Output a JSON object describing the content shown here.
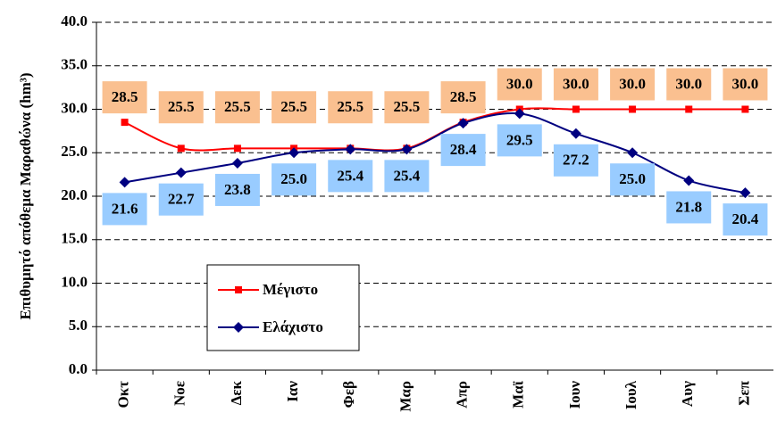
{
  "chart_data": {
    "type": "line",
    "y_label": "Επιθυμητό απόθεμα Μαραθώνα (hm³)",
    "categories": [
      "Οκτ",
      "Νοε",
      "Δεκ",
      "Ιαν",
      "Φεβ",
      "Μαρ",
      "Απρ",
      "Μαϊ",
      "Ιουν",
      "Ιουλ",
      "Αυγ",
      "Σεπ"
    ],
    "series": [
      {
        "name": "Μέγιστο",
        "color": "#ff0000",
        "label_color": "#fac090",
        "values": [
          28.5,
          25.5,
          25.5,
          25.5,
          25.5,
          25.5,
          28.5,
          30,
          30,
          30,
          30,
          30
        ],
        "value_labels": [
          "28.5",
          "25.5",
          "25.5",
          "25.5",
          "25.5",
          "25.5",
          "28.5",
          "30.0",
          "30.0",
          "30.0",
          "30.0",
          "30.0"
        ]
      },
      {
        "name": "Ελάχιστο",
        "color": "#000080",
        "label_color": "#99ccff",
        "values": [
          21.6,
          22.7,
          23.8,
          25.0,
          25.4,
          25.4,
          28.4,
          29.5,
          27.2,
          25.0,
          21.8,
          20.4
        ],
        "value_labels": [
          "21.6",
          "22.7",
          "23.8",
          "25.0",
          "25.4",
          "25.4",
          "28.4",
          "29.5",
          "27.2",
          "25.0",
          "21.8",
          "20.4"
        ]
      }
    ],
    "ylim": [
      0,
      40
    ],
    "yticks": [
      {
        "value": 0,
        "label": "0.0"
      },
      {
        "value": 5,
        "label": "5.0"
      },
      {
        "value": 10,
        "label": "10.0"
      },
      {
        "value": 15,
        "label": "15.0"
      },
      {
        "value": 20,
        "label": "20.0"
      },
      {
        "value": 25,
        "label": "25.0"
      },
      {
        "value": 30,
        "label": "30.0"
      },
      {
        "value": 35,
        "label": "35.0"
      },
      {
        "value": 40,
        "label": "40.0"
      }
    ],
    "grid": true
  }
}
